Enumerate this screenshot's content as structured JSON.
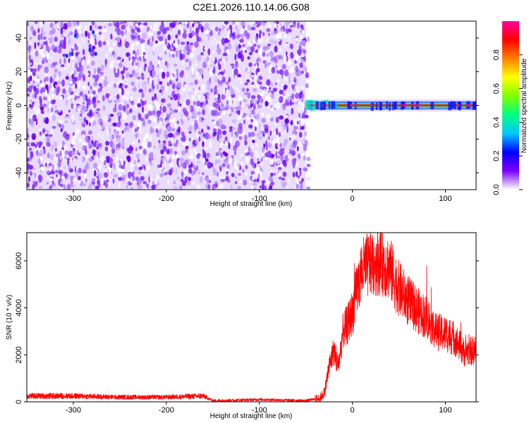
{
  "title": "C2E1.2026.110.14.06.G08",
  "chart_data": [
    {
      "type": "heatmap",
      "xlabel": "Height of straight line (km)",
      "ylabel": "Frequency (Hz)",
      "xlim": [
        -350,
        133
      ],
      "ylim": [
        -50,
        50
      ],
      "x_ticks": [
        -300,
        -200,
        -100,
        0,
        100
      ],
      "y_ticks": [
        -40,
        -20,
        0,
        20,
        40
      ],
      "colorbar": {
        "label": "Normalized spectral amplitude",
        "range": [
          0,
          1
        ],
        "ticks": [
          "0.0",
          "0.2",
          "0.4",
          "0.6",
          "0.8"
        ],
        "colormap": [
          "#ffffff",
          "#7a00ff",
          "#0000ff",
          "#00c8ff",
          "#00ff80",
          "#80ff00",
          "#ffff00",
          "#ff8000",
          "#ff0000",
          "#ff00a0"
        ]
      },
      "regions": [
        {
          "description": "noise",
          "x_range": [
            -350,
            -50
          ],
          "freq_range": [
            -50,
            50
          ],
          "amplitude": 0.1
        },
        {
          "description": "carrier",
          "x_range": [
            -50,
            133
          ],
          "freq_center": 0,
          "amplitude": 1.0
        }
      ]
    },
    {
      "type": "line",
      "xlabel": "Height of straight line (km)",
      "ylabel": "SNR (10 * v/v)",
      "xlim": [
        -350,
        133
      ],
      "ylim": [
        0,
        7200
      ],
      "x_ticks": [
        -300,
        -200,
        -100,
        0,
        100
      ],
      "y_ticks": [
        0,
        2000,
        4000,
        6000
      ],
      "color": "#ff0000",
      "series": [
        {
          "x": [
            -350,
            -300,
            -250,
            -200,
            -160,
            -150,
            -100,
            -50,
            -35,
            -30,
            -25,
            -20,
            -15,
            -10,
            -5,
            0,
            5,
            10,
            20,
            30,
            40,
            50,
            60,
            70,
            80,
            90,
            100,
            110,
            120,
            133
          ],
          "values": [
            250,
            250,
            200,
            200,
            250,
            50,
            100,
            50,
            150,
            400,
            1500,
            2200,
            1500,
            3000,
            3300,
            3800,
            4800,
            5600,
            5900,
            6000,
            5700,
            4800,
            4300,
            3900,
            3600,
            3000,
            2900,
            2700,
            2100,
            2200
          ]
        }
      ]
    }
  ]
}
